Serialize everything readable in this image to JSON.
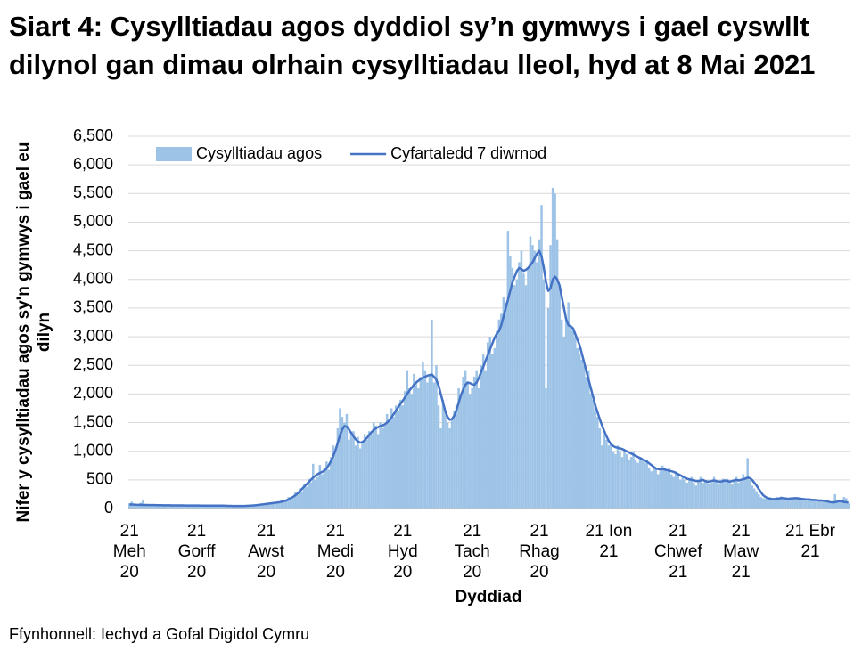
{
  "chart_data": {
    "type": "bar",
    "title": "Siart 4: Cysylltiadau agos dyddiol sy’n gymwys i gael cyswllt dilynol gan dimau olrhain cysylltiadau lleol, hyd at 8 Mai 2021",
    "y_label": "Nifer y cysylltiadau agos sy'n gymwys i gael eu dilyn",
    "x_label": "Dyddiad",
    "source": "Ffynhonnell: Iechyd a Gofal Digidol Cymru",
    "legend": "top-left",
    "grid": true,
    "ylim": [
      0,
      6500
    ],
    "yticks": [
      0,
      500,
      {
        "value": 1000,
        "label": "1,000"
      },
      {
        "value": 1500,
        "label": "1,500"
      },
      {
        "value": 2000,
        "label": "2,000"
      },
      {
        "value": 2500,
        "label": "2,500"
      },
      {
        "value": 3000,
        "label": "3,000"
      },
      {
        "value": 3500,
        "label": "3,500"
      },
      {
        "value": 4000,
        "label": "4,000"
      },
      {
        "value": 4500,
        "label": "4,500"
      },
      {
        "value": 5000,
        "label": "5,000"
      },
      {
        "value": 5500,
        "label": "5,500"
      },
      {
        "value": 6000,
        "label": "6,000"
      },
      {
        "value": 6500,
        "label": "6,500"
      }
    ],
    "categories": [
      "21\nMeh\n20",
      null,
      null,
      null,
      null,
      null,
      null,
      null,
      null,
      null,
      null,
      null,
      null,
      null,
      null,
      null,
      null,
      null,
      null,
      null,
      null,
      null,
      null,
      null,
      null,
      null,
      null,
      null,
      null,
      null,
      "21\nGorff\n20",
      null,
      null,
      null,
      null,
      null,
      null,
      null,
      null,
      null,
      null,
      null,
      null,
      null,
      null,
      null,
      null,
      null,
      null,
      null,
      null,
      null,
      null,
      null,
      null,
      null,
      null,
      null,
      null,
      null,
      null,
      "21\nAwst\n20",
      null,
      null,
      null,
      null,
      null,
      null,
      null,
      null,
      null,
      null,
      null,
      null,
      null,
      null,
      null,
      null,
      null,
      null,
      null,
      null,
      null,
      null,
      null,
      null,
      null,
      null,
      null,
      null,
      null,
      null,
      "21\nMedi\n20",
      null,
      null,
      null,
      null,
      null,
      null,
      null,
      null,
      null,
      null,
      null,
      null,
      null,
      null,
      null,
      null,
      null,
      null,
      null,
      null,
      null,
      null,
      null,
      null,
      null,
      null,
      null,
      null,
      null,
      "21\nHyd\n20",
      null,
      null,
      null,
      null,
      null,
      null,
      null,
      null,
      null,
      null,
      null,
      null,
      null,
      null,
      null,
      null,
      null,
      null,
      null,
      null,
      null,
      null,
      null,
      null,
      null,
      null,
      null,
      null,
      null,
      null,
      "21\nTach\n20",
      null,
      null,
      null,
      null,
      null,
      null,
      null,
      null,
      null,
      null,
      null,
      null,
      null,
      null,
      null,
      null,
      null,
      null,
      null,
      null,
      null,
      null,
      null,
      null,
      null,
      null,
      null,
      null,
      null,
      "21\nRhag\n20",
      null,
      null,
      null,
      null,
      null,
      null,
      null,
      null,
      null,
      null,
      null,
      null,
      null,
      null,
      null,
      null,
      null,
      null,
      null,
      null,
      null,
      null,
      null,
      null,
      null,
      null,
      null,
      null,
      null,
      null,
      "21 Ion\n21",
      null,
      null,
      null,
      null,
      null,
      null,
      null,
      null,
      null,
      null,
      null,
      null,
      null,
      null,
      null,
      null,
      null,
      null,
      null,
      null,
      null,
      null,
      null,
      null,
      null,
      null,
      null,
      null,
      null,
      null,
      "21\nChwef\n21",
      null,
      null,
      null,
      null,
      null,
      null,
      null,
      null,
      null,
      null,
      null,
      null,
      null,
      null,
      null,
      null,
      null,
      null,
      null,
      null,
      null,
      null,
      null,
      null,
      null,
      null,
      null,
      "21\nMaw\n21",
      null,
      null,
      null,
      null,
      null,
      null,
      null,
      null,
      null,
      null,
      null,
      null,
      null,
      null,
      null,
      null,
      null,
      null,
      null,
      null,
      null,
      null,
      null,
      null,
      null,
      null,
      null,
      null,
      null,
      null,
      "21 Ebr\n21",
      null,
      null,
      null,
      null,
      null,
      null,
      null,
      null,
      null,
      null,
      null,
      null,
      null,
      null,
      null,
      null,
      null
    ],
    "series": [
      {
        "name": "Cysylltiadau agos",
        "type": "bar",
        "color": "#9dc3e6",
        "values": [
          90,
          120,
          80,
          60,
          50,
          100,
          140,
          60,
          50,
          70,
          60,
          80,
          50,
          40,
          45,
          55,
          70,
          60,
          45,
          40,
          60,
          70,
          50,
          40,
          45,
          60,
          55,
          50,
          45,
          50,
          60,
          55,
          45,
          40,
          50,
          55,
          60,
          50,
          45,
          40,
          60,
          50,
          40,
          45,
          50,
          60,
          40,
          35,
          45,
          50,
          40,
          50,
          55,
          45,
          60,
          70,
          50,
          55,
          80,
          75,
          70,
          95,
          90,
          80,
          110,
          105,
          95,
          120,
          140,
          130,
          160,
          200,
          150,
          180,
          280,
          240,
          350,
          300,
          420,
          380,
          520,
          460,
          780,
          500,
          550,
          760,
          600,
          700,
          820,
          680,
          900,
          1100,
          1000,
          1400,
          1750,
          1600,
          1500,
          1650,
          1200,
          1300,
          1350,
          1100,
          1250,
          1050,
          1150,
          1300,
          1200,
          1350,
          1300,
          1500,
          1450,
          1300,
          1500,
          1400,
          1450,
          1650,
          1550,
          1750,
          1600,
          1800,
          1700,
          1900,
          1800,
          2050,
          2400,
          2100,
          2000,
          2350,
          2200,
          2100,
          2300,
          2550,
          2400,
          2200,
          2350,
          3300,
          2200,
          2500,
          1800,
          1400,
          1900,
          1700,
          1500,
          1400,
          1550,
          1700,
          1800,
          2100,
          2000,
          2300,
          2400,
          2200,
          2000,
          2100,
          2300,
          2400,
          2100,
          2500,
          2700,
          2400,
          2900,
          3000,
          2700,
          2800,
          3100,
          3300,
          3400,
          3700,
          3600,
          4850,
          4400,
          4200,
          3900,
          4000,
          4300,
          4500,
          4100,
          3900,
          4200,
          4750,
          4600,
          4500,
          4300,
          4700,
          5300,
          4000,
          2100,
          3500,
          4600,
          5600,
          5500,
          4700,
          3900,
          3300,
          3000,
          3300,
          3600,
          3200,
          3100,
          3000,
          2800,
          2700,
          2600,
          2500,
          2300,
          2400,
          2000,
          1900,
          1700,
          1600,
          1400,
          1100,
          1300,
          1200,
          1100,
          1150,
          1000,
          950,
          1100,
          1000,
          900,
          1000,
          950,
          850,
          900,
          1000,
          850,
          800,
          900,
          850,
          800,
          850,
          700,
          650,
          750,
          700,
          600,
          650,
          750,
          700,
          650,
          700,
          600,
          550,
          650,
          600,
          500,
          550,
          500,
          450,
          500,
          550,
          450,
          400,
          500,
          550,
          450,
          500,
          480,
          420,
          450,
          550,
          500,
          420,
          450,
          520,
          480,
          520,
          460,
          430,
          500,
          550,
          450,
          480,
          600,
          550,
          880,
          500,
          400,
          350,
          300,
          250,
          200,
          180,
          170,
          190,
          200,
          150,
          180,
          200,
          190,
          210,
          170,
          160,
          180,
          200,
          150,
          190,
          170,
          180,
          160,
          180,
          150,
          170,
          160,
          140,
          130,
          150,
          140,
          120,
          150,
          120,
          100,
          90,
          130,
          250,
          140,
          110,
          120,
          200,
          180,
          90
        ]
      },
      {
        "name": "Cyfartaledd 7 diwrnod",
        "type": "line",
        "color": "#4472c4",
        "values": [
          70,
          70,
          68,
          66,
          65,
          64,
          63,
          62,
          62,
          61,
          60,
          60,
          59,
          58,
          58,
          57,
          57,
          56,
          56,
          55,
          55,
          55,
          54,
          54,
          54,
          53,
          53,
          53,
          52,
          52,
          52,
          52,
          51,
          51,
          51,
          50,
          50,
          50,
          50,
          50,
          50,
          50,
          50,
          48,
          47,
          46,
          45,
          45,
          44,
          44,
          44,
          45,
          46,
          48,
          50,
          53,
          56,
          60,
          65,
          70,
          75,
          80,
          85,
          90,
          95,
          100,
          105,
          110,
          120,
          130,
          140,
          160,
          180,
          200,
          230,
          260,
          300,
          340,
          380,
          420,
          460,
          500,
          540,
          570,
          600,
          620,
          640,
          660,
          700,
          760,
          830,
          920,
          1020,
          1150,
          1280,
          1380,
          1440,
          1430,
          1380,
          1320,
          1260,
          1210,
          1170,
          1150,
          1160,
          1190,
          1230,
          1280,
          1330,
          1370,
          1400,
          1420,
          1440,
          1450,
          1470,
          1500,
          1540,
          1590,
          1650,
          1710,
          1770,
          1830,
          1880,
          1940,
          2000,
          2060,
          2110,
          2160,
          2200,
          2230,
          2260,
          2280,
          2300,
          2320,
          2330,
          2340,
          2300,
          2250,
          2150,
          2000,
          1850,
          1700,
          1600,
          1550,
          1560,
          1620,
          1720,
          1850,
          1980,
          2080,
          2160,
          2200,
          2190,
          2170,
          2160,
          2200,
          2280,
          2380,
          2480,
          2580,
          2680,
          2780,
          2880,
          2980,
          3050,
          3100,
          3200,
          3350,
          3500,
          3650,
          3800,
          3950,
          4050,
          4150,
          4200,
          4180,
          4150,
          4170,
          4200,
          4250,
          4300,
          4380,
          4450,
          4500,
          4400,
          4200,
          3950,
          3800,
          3850,
          4000,
          4050,
          4000,
          3900,
          3700,
          3500,
          3300,
          3200,
          3180,
          3150,
          3050,
          2950,
          2850,
          2700,
          2550,
          2400,
          2250,
          2100,
          1950,
          1800,
          1680,
          1560,
          1450,
          1350,
          1260,
          1180,
          1120,
          1090,
          1070,
          1060,
          1050,
          1040,
          1020,
          1000,
          980,
          960,
          940,
          920,
          900,
          880,
          860,
          840,
          820,
          790,
          760,
          730,
          700,
          690,
          680,
          690,
          680,
          670,
          660,
          650,
          640,
          620,
          600,
          580,
          560,
          540,
          520,
          510,
          500,
          490,
          480,
          480,
          490,
          500,
          480,
          470,
          470,
          480,
          490,
          480,
          470,
          470,
          480,
          490,
          480,
          470,
          480,
          490,
          500,
          490,
          500,
          510,
          520,
          540,
          530,
          500,
          450,
          400,
          340,
          280,
          230,
          200,
          180,
          170,
          165,
          165,
          170,
          175,
          180,
          180,
          175,
          170,
          170,
          175,
          180,
          180,
          175,
          170,
          165,
          160,
          160,
          155,
          150,
          150,
          145,
          140,
          140,
          135,
          130,
          120,
          110,
          105,
          110,
          120,
          130,
          125,
          115,
          110,
          105
        ]
      }
    ]
  }
}
